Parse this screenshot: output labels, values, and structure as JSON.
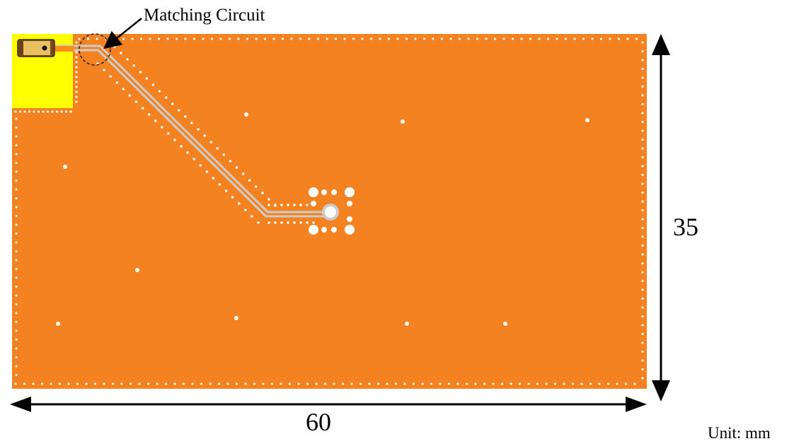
{
  "annotations": {
    "callout": "Matching Circuit",
    "height": "35",
    "width": "60",
    "unit": "Unit: mm"
  },
  "colors": {
    "board": "#f58220",
    "feed_region": "#ffff00",
    "via": "#ffffff",
    "trace": "#cccccc",
    "arrow": "#000000"
  },
  "icons": [
    "connector-icon"
  ]
}
